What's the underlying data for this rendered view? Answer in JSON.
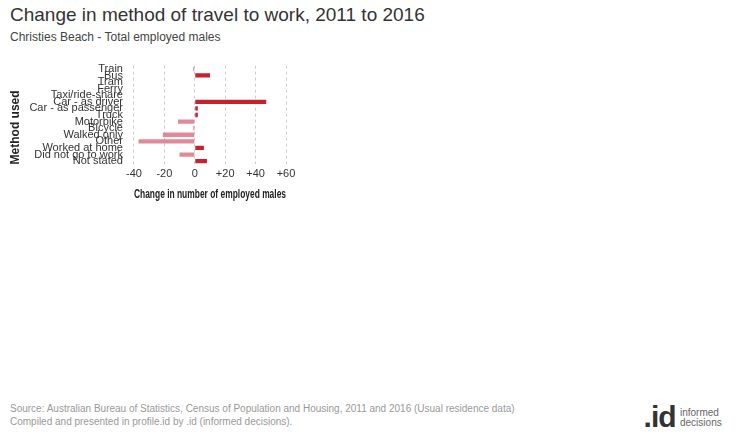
{
  "chart_data": {
    "type": "bar",
    "orientation": "horizontal",
    "title": "Change in method of travel to work, 2011 to 2016",
    "subtitle": "Christies Beach - Total employed males",
    "x_label": "Change in number of employed males",
    "y_label": "Method used",
    "categories": [
      "Train",
      "Bus",
      "Tram",
      "Ferry",
      "Taxi/ride-share",
      "Car - as driver",
      "Car - as passenger",
      "Truck",
      "Motorbike",
      "Bicycle",
      "Walked only",
      "Other",
      "Worked at home",
      "Did not go to work",
      "Not stated"
    ],
    "values": [
      -1,
      10,
      0,
      0,
      0,
      47,
      2,
      2,
      -11,
      -1,
      -21,
      -37,
      6,
      -10,
      8
    ],
    "colors": [
      "#e08a99",
      "#c8202f",
      "#c8202f",
      "#c8202f",
      "#c8202f",
      "#c8202f",
      "#c8202f",
      "#c8202f",
      "#e08a99",
      "#e08a99",
      "#e08a99",
      "#e08a99",
      "#c8202f",
      "#e08a99",
      "#c8202f"
    ],
    "xlim": [
      -40,
      60
    ],
    "xticks": [
      -40,
      -20,
      0,
      {
        "value": 20,
        "label": "+20"
      },
      {
        "value": 40,
        "label": "+40"
      },
      {
        "value": 60,
        "label": "+60"
      }
    ],
    "grid": true,
    "footnote": [
      "Source: Australian Bureau of Statistics, Census of Population and Housing, 2011 and 2016 (Usual residence data)",
      "Compiled and presented in profile.id by .id (informed decisions)."
    ],
    "logo": ".id",
    "logo_text": "informed decisions"
  }
}
